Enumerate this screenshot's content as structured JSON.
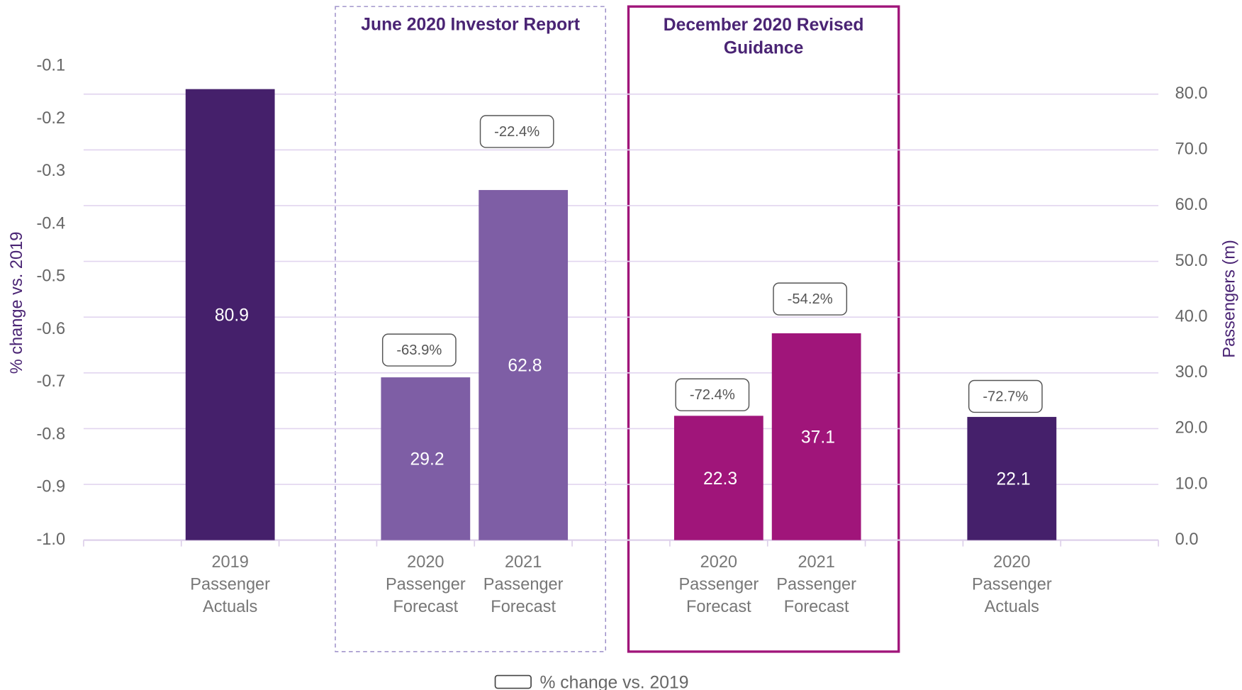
{
  "chart_data": {
    "type": "bar",
    "categories": [
      null,
      "2019\nPassenger\nActuals",
      null,
      "2020\nPassenger\nForecast",
      "2021\nPassenger\nForecast",
      null,
      "2020\nPassenger\nForecast",
      "2021\nPassenger\nForecast",
      null,
      "2020\nPassenger\nActuals",
      null
    ],
    "series": [
      {
        "axis": "y2",
        "colors": [
          null,
          "#45206b",
          null,
          "#7e5ea5",
          "#7e5ea5",
          null,
          "#a0157a",
          "#a0157a",
          null,
          "#45206b",
          null
        ],
        "values": [
          null,
          80.9,
          null,
          29.2,
          62.8,
          null,
          22.3,
          37.1,
          null,
          22.1,
          null
        ]
      },
      {
        "name": "% change vs. 2019",
        "values": [
          null,
          null,
          null,
          -0.639,
          -0.224,
          null,
          -0.724,
          -0.542,
          null,
          -0.727,
          null
        ],
        "value_labels": [
          null,
          null,
          null,
          "-63.9%",
          "-22.4%",
          null,
          "-72.4%",
          "-54.2%",
          null,
          "-72.7%",
          null
        ]
      }
    ],
    "ylabel": "% change vs. 2019",
    "y2label": "Passengers (m)",
    "ylim": [
      -1.0,
      -0.1
    ],
    "yticks": [
      {
        "value": -1.0,
        "label": "-1.0"
      },
      -0.9,
      -0.8,
      -0.7,
      -0.6,
      -0.5,
      -0.4,
      -0.3,
      -0.2,
      -0.1
    ],
    "y2lim": [
      0,
      85
    ],
    "y2ticks": [
      {
        "value": 0,
        "label": "0.0"
      },
      {
        "value": 10,
        "label": "10.0"
      },
      {
        "value": 20,
        "label": "20.0"
      },
      {
        "value": 30,
        "label": "30.0"
      },
      {
        "value": 40,
        "label": "40.0"
      },
      {
        "value": 50,
        "label": "50.0"
      },
      {
        "value": 60,
        "label": "60.0"
      },
      {
        "value": 70,
        "label": "70.0"
      },
      {
        "value": 80,
        "label": "80.0"
      }
    ],
    "grid": true,
    "legend": "bottom",
    "annotations": [
      {
        "text": "June 2020 Investor Report",
        "from": 3,
        "to": 4,
        "style": "dashed",
        "color": "#9a8cc7"
      },
      {
        "text": "December 2020 Revised\nGuidance",
        "from": 6,
        "to": 7,
        "style": "solid",
        "color": "#a0157a"
      }
    ]
  }
}
